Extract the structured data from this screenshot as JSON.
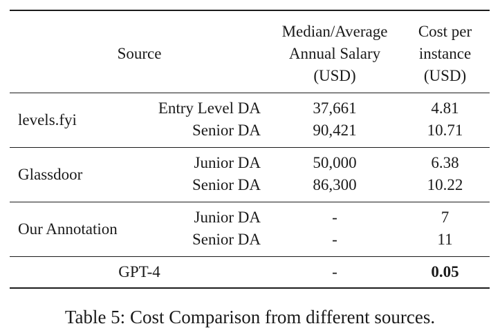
{
  "header": {
    "source": "Source",
    "salary_line1": "Median/Average",
    "salary_line2": "Annual Salary",
    "salary_line3": "(USD)",
    "cost_line1": "Cost per",
    "cost_line2": "instance",
    "cost_line3": "(USD)"
  },
  "groups": [
    {
      "source": "levels.fyi",
      "rows": [
        {
          "role": "Entry Level DA",
          "salary": "37,661",
          "cost": "4.81"
        },
        {
          "role": "Senior DA",
          "salary": "90,421",
          "cost": "10.71"
        }
      ]
    },
    {
      "source": "Glassdoor",
      "rows": [
        {
          "role": "Junior DA",
          "salary": "50,000",
          "cost": "6.38"
        },
        {
          "role": "Senior DA",
          "salary": "86,300",
          "cost": "10.22"
        }
      ]
    },
    {
      "source": "Our Annotation",
      "rows": [
        {
          "role": "Junior DA",
          "salary": "-",
          "cost": "7"
        },
        {
          "role": "Senior DA",
          "salary": "-",
          "cost": "11"
        }
      ]
    }
  ],
  "gpt": {
    "source": "GPT-4",
    "salary": "-",
    "cost": "0.05"
  },
  "caption": "Table 5: Cost Comparison from different sources."
}
